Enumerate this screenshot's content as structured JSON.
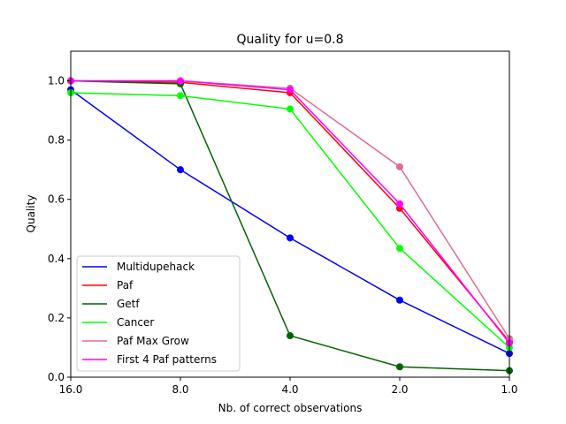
{
  "chart_data": {
    "type": "line",
    "title": "Quality for u=0.8",
    "xlabel": "Nb. of correct observations",
    "ylabel": "Quality",
    "x_scale": "log2",
    "x_inverted": true,
    "x_ticks": [
      16.0,
      8.0,
      4.0,
      2.0,
      1.0
    ],
    "x_tick_labels": [
      "16.0",
      "8.0",
      "4.0",
      "2.0",
      "1.0"
    ],
    "xlim": [
      16.0,
      1.0
    ],
    "y_ticks": [
      0.0,
      0.2,
      0.4,
      0.6,
      0.8,
      1.0
    ],
    "y_tick_labels": [
      "0.0",
      "0.2",
      "0.4",
      "0.6",
      "0.8",
      "1.0"
    ],
    "ylim": [
      0.0,
      1.1
    ],
    "grid": false,
    "legend_position": "lower-left",
    "x": [
      16.0,
      8.0,
      4.0,
      2.0,
      1.0
    ],
    "series": [
      {
        "name": "Multidupehack",
        "color": "#0000ff",
        "values": [
          0.97,
          0.7,
          0.47,
          0.26,
          0.08
        ]
      },
      {
        "name": "Paf",
        "color": "#ff0000",
        "values": [
          1.0,
          0.995,
          0.96,
          0.57,
          0.12
        ]
      },
      {
        "name": "Getf",
        "color": "#006400",
        "values": [
          1.0,
          0.99,
          0.14,
          0.035,
          0.022
        ]
      },
      {
        "name": "Cancer",
        "color": "#00ff00",
        "values": [
          0.96,
          0.95,
          0.905,
          0.435,
          0.1
        ]
      },
      {
        "name": "Paf Max Grow",
        "color": "#db7093",
        "values": [
          1.0,
          1.0,
          0.975,
          0.71,
          0.13
        ]
      },
      {
        "name": "First 4 Paf patterns",
        "color": "#ff00ff",
        "values": [
          1.0,
          1.0,
          0.97,
          0.585,
          0.115
        ]
      }
    ]
  }
}
